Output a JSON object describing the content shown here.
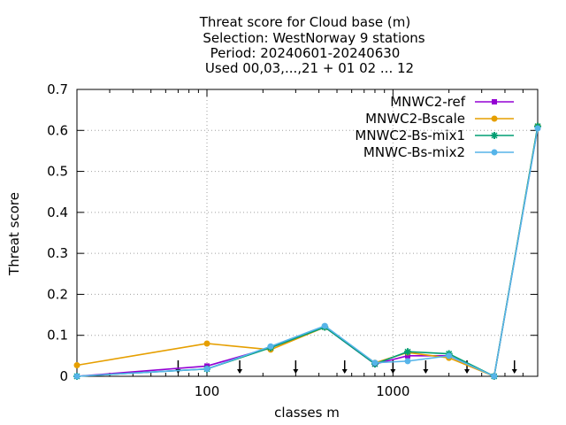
{
  "chart_data": {
    "type": "line",
    "title_lines": [
      "Threat score  for Cloud base (m)",
      "Selection: WestNorway      9 stations",
      "Period: 20240601-20240630",
      "Used 00,03,...,21 + 01 02 ... 12"
    ],
    "xlabel": "classes m",
    "ylabel": "Threat score",
    "x_scale": "log",
    "xlim": [
      20,
      6000
    ],
    "ylim": [
      0,
      0.7
    ],
    "x_ticks": [
      100,
      1000
    ],
    "x_tick_labels": [
      "100",
      "1000"
    ],
    "y_ticks": [
      0,
      0.1,
      0.2,
      0.3,
      0.4,
      0.5,
      0.6,
      0.7
    ],
    "y_tick_labels": [
      "0",
      "0.1",
      "0.2",
      "0.3",
      "0.4",
      "0.5",
      "0.6",
      "0.7"
    ],
    "grid": true,
    "legend_position": "top-right",
    "x": [
      20,
      100,
      220,
      430,
      800,
      1200,
      2000,
      3500,
      6000
    ],
    "series": [
      {
        "name": "MNWC2-ref",
        "color": "#9400d3",
        "marker": "square",
        "values": [
          0.0,
          0.025,
          0.07,
          0.12,
          0.03,
          0.05,
          0.05,
          0.0,
          0.607
        ]
      },
      {
        "name": "MNWC2-Bscale",
        "color": "#e69f00",
        "marker": "circle",
        "values": [
          0.027,
          0.08,
          0.065,
          0.12,
          0.033,
          0.058,
          0.045,
          0.0,
          0.61
        ]
      },
      {
        "name": "MNWC2-Bs-mix1",
        "color": "#009e73",
        "marker": "star",
        "values": [
          0.0,
          0.018,
          0.07,
          0.12,
          0.03,
          0.06,
          0.055,
          0.0,
          0.61
        ]
      },
      {
        "name": "MNWC-Bs-mix2",
        "color": "#56b4e9",
        "marker": "circle",
        "values": [
          0.0,
          0.018,
          0.073,
          0.123,
          0.033,
          0.037,
          0.05,
          0.0,
          0.605
        ]
      }
    ],
    "arrow_markers_x": [
      70,
      150,
      300,
      550,
      1000,
      1500,
      2500,
      4500
    ]
  }
}
